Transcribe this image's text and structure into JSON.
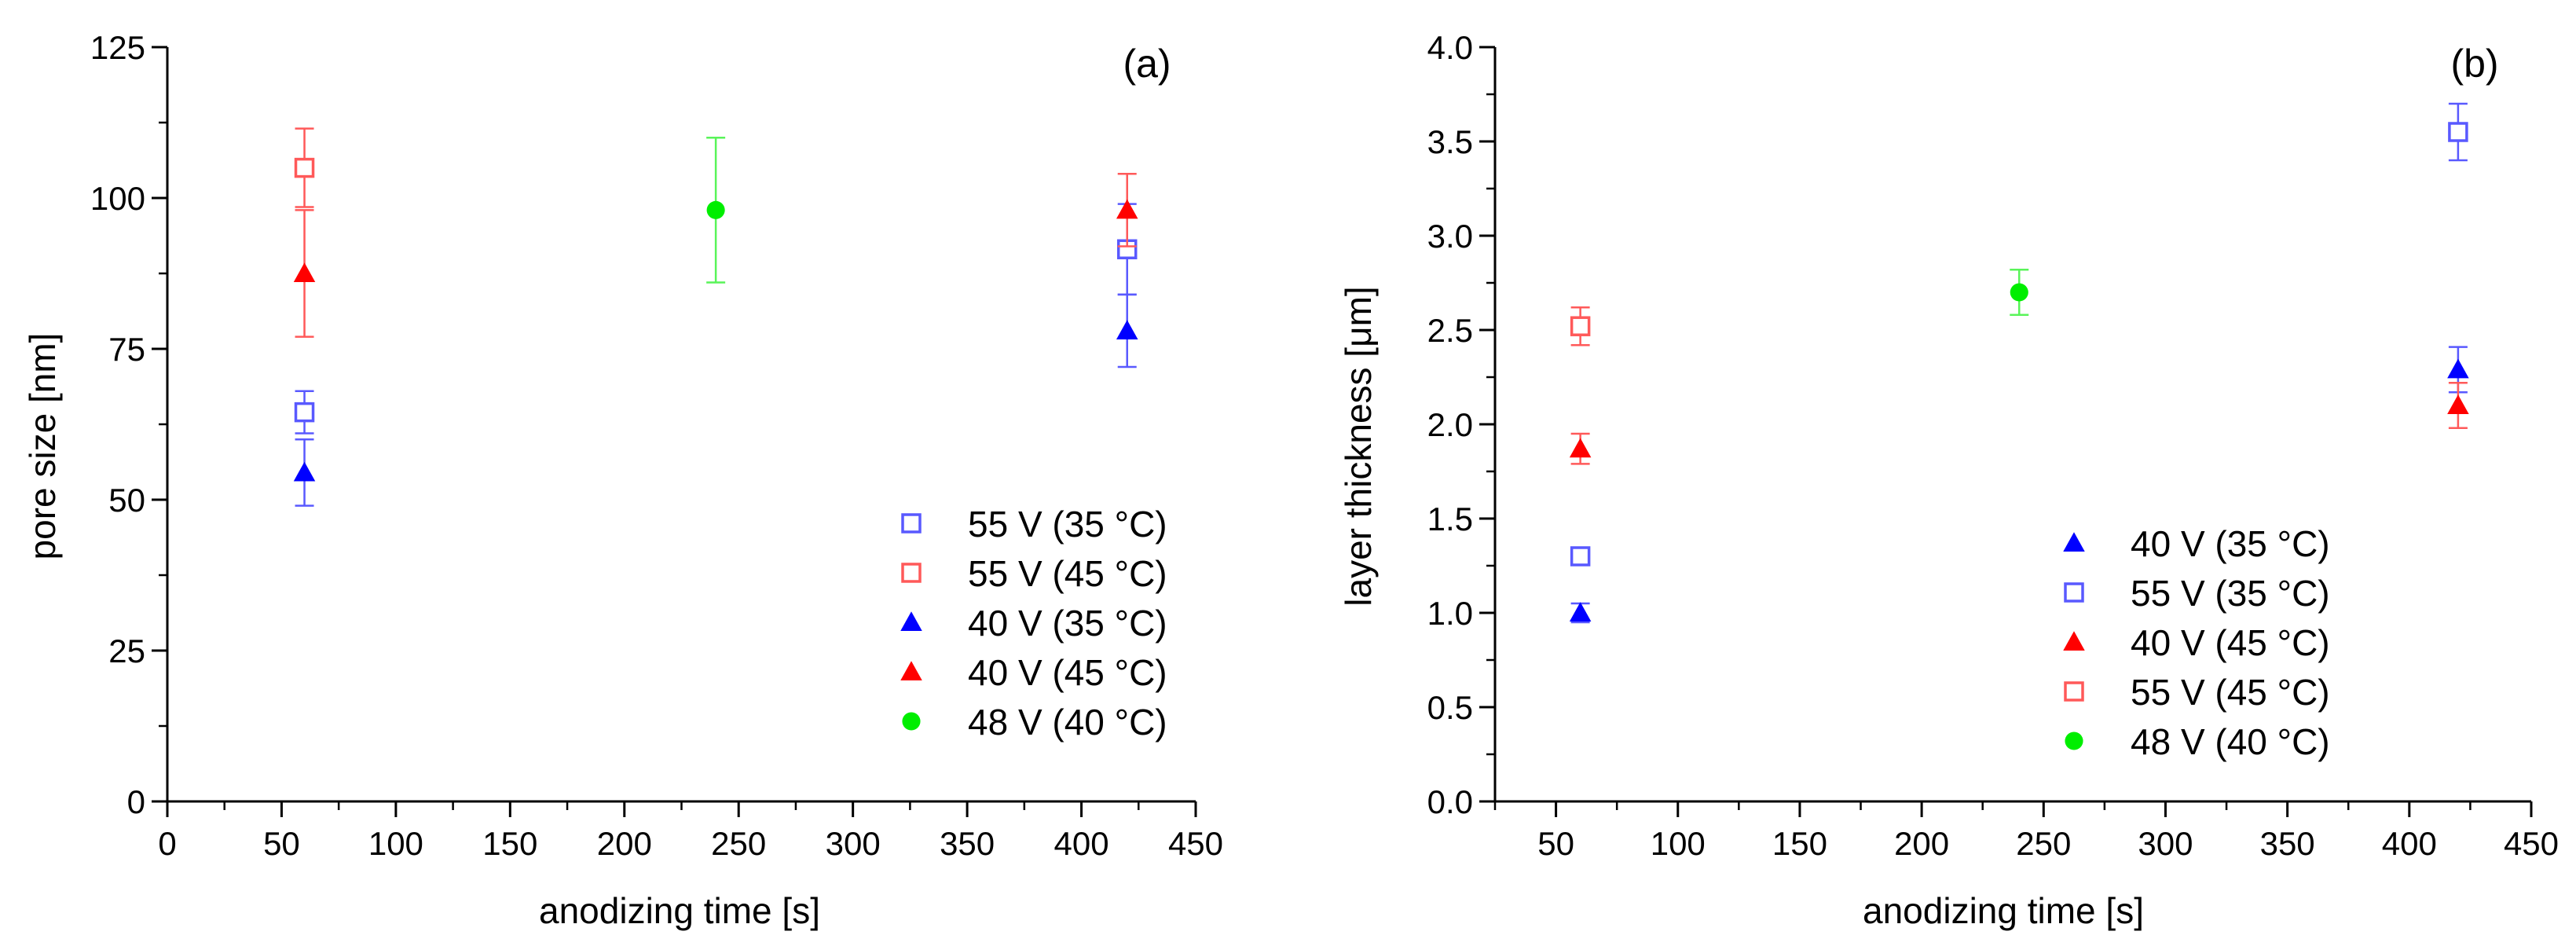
{
  "chart_data": [
    {
      "type": "scatter",
      "panel_label": "(a)",
      "xlabel": "anodizing time [s]",
      "ylabel": "pore size [nm]",
      "xlim": [
        0,
        450
      ],
      "ylim": [
        0,
        125
      ],
      "xticks": [
        "0",
        "50",
        "100",
        "150",
        "200",
        "250",
        "300",
        "350",
        "400",
        "450"
      ],
      "yticks": [
        "0",
        "25",
        "50",
        "75",
        "100",
        "125"
      ],
      "grid": false,
      "legend_position": "bottom-right",
      "series": [
        {
          "name": "55 V (35 °C)",
          "marker": "open-square",
          "color": "#0000ff",
          "points": [
            {
              "x": 60,
              "y": 64.5,
              "err": 3.5
            },
            {
              "x": 420,
              "y": 91.5,
              "err": 7.5
            }
          ]
        },
        {
          "name": "55 V (45 °C)",
          "marker": "open-square",
          "color": "#ff0000",
          "points": [
            {
              "x": 60,
              "y": 105,
              "err": 6.5
            }
          ]
        },
        {
          "name": "40 V (35 °C)",
          "marker": "filled-triangle",
          "color": "#0000ff",
          "points": [
            {
              "x": 60,
              "y": 54.5,
              "err": 5.5
            },
            {
              "x": 420,
              "y": 78,
              "err": 6
            }
          ]
        },
        {
          "name": "40 V (45 °C)",
          "marker": "filled-triangle",
          "color": "#ff0000",
          "points": [
            {
              "x": 60,
              "y": 87.5,
              "err": 10.5
            },
            {
              "x": 420,
              "y": 98,
              "err": 6
            }
          ]
        },
        {
          "name": "48 V (40 °C)",
          "marker": "filled-circle",
          "color": "#00ee00",
          "points": [
            {
              "x": 240,
              "y": 98,
              "err": 12
            }
          ]
        }
      ]
    },
    {
      "type": "scatter",
      "panel_label": "(b)",
      "xlabel": "anodizing time [s]",
      "ylabel": "layer thickness [μm]",
      "xlim": [
        25,
        450
      ],
      "ylim": [
        0,
        4.0
      ],
      "xticks": [
        "50",
        "100",
        "150",
        "200",
        "250",
        "300",
        "350",
        "400",
        "450"
      ],
      "yticks": [
        "0.0",
        "0.5",
        "1.0",
        "1.5",
        "2.0",
        "2.5",
        "3.0",
        "3.5",
        "4.0"
      ],
      "grid": false,
      "legend_position": "bottom-right",
      "series": [
        {
          "name": "40 V (35 °C)",
          "marker": "filled-triangle",
          "color": "#0000ff",
          "points": [
            {
              "x": 60,
              "y": 1.0,
              "err": 0.05
            },
            {
              "x": 420,
              "y": 2.29,
              "err": 0.12
            }
          ]
        },
        {
          "name": "55 V (35 °C)",
          "marker": "open-square",
          "color": "#0000ff",
          "points": [
            {
              "x": 60,
              "y": 1.3,
              "err": 0.03
            },
            {
              "x": 420,
              "y": 3.55,
              "err": 0.15
            }
          ]
        },
        {
          "name": "40 V (45 °C)",
          "marker": "filled-triangle",
          "color": "#ff0000",
          "points": [
            {
              "x": 60,
              "y": 1.87,
              "err": 0.08
            },
            {
              "x": 420,
              "y": 2.1,
              "err": 0.12
            }
          ]
        },
        {
          "name": "55 V (45 °C)",
          "marker": "open-square",
          "color": "#ff0000",
          "points": [
            {
              "x": 60,
              "y": 2.52,
              "err": 0.1
            }
          ]
        },
        {
          "name": "48 V (40 °C)",
          "marker": "filled-circle",
          "color": "#00ee00",
          "points": [
            {
              "x": 240,
              "y": 2.7,
              "err": 0.12
            }
          ]
        }
      ]
    }
  ]
}
